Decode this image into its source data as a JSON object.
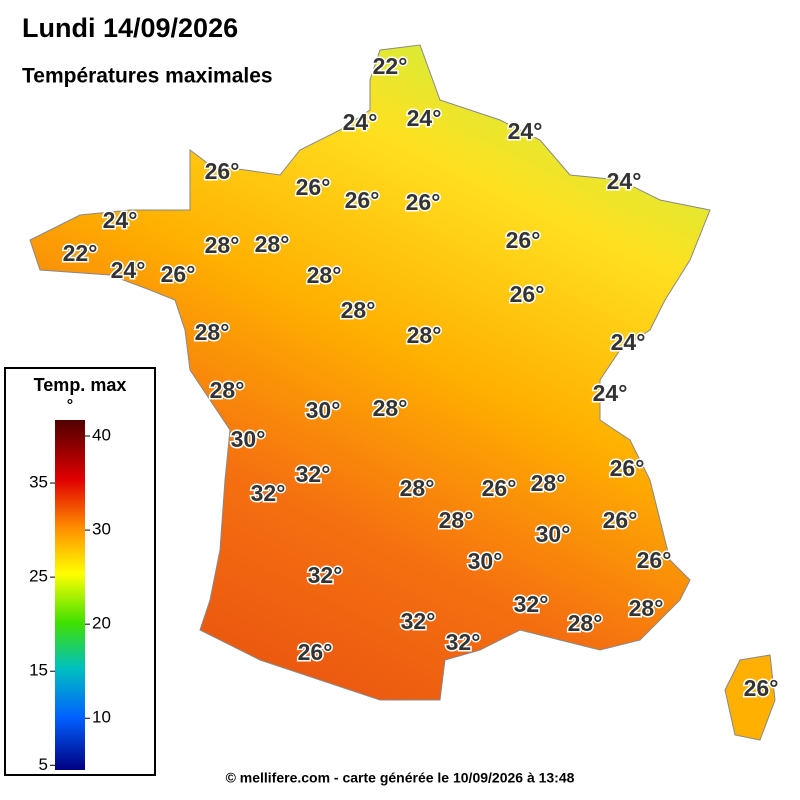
{
  "header": {
    "title": "Lundi 14/09/2026",
    "subtitle": "Températures maximales"
  },
  "map": {
    "labels": [
      "22°",
      "24°",
      "24°",
      "24°",
      "26°",
      "26°",
      "26°",
      "26°",
      "24°",
      "24°",
      "22°",
      "28°",
      "28°",
      "24°",
      "26°",
      "26°",
      "28°",
      "26°",
      "28°",
      "28°",
      "28°",
      "24°",
      "28°",
      "24°",
      "30°",
      "28°",
      "30°",
      "26°",
      "32°",
      "32°",
      "28°",
      "26°",
      "28°",
      "28°",
      "26°",
      "30°",
      "30°",
      "26°",
      "32°",
      "32°",
      "28°",
      "32°",
      "28°",
      "32°",
      "26°",
      "26°"
    ]
  },
  "legend": {
    "title": "Temp. max",
    "unit": "°",
    "range": [
      4.5,
      41.7
    ],
    "ticks": [
      5,
      10,
      15,
      20,
      25,
      30,
      35,
      40
    ]
  },
  "footer": "© mellifere.com - carte générée le 10/09/2026 à 13:48"
}
